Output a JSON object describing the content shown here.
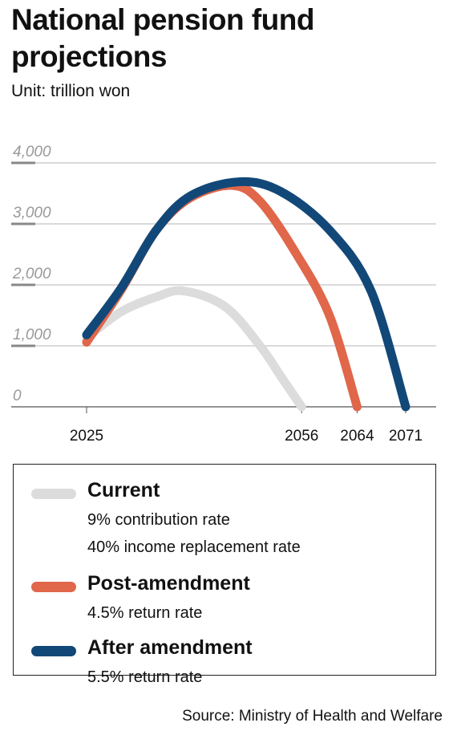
{
  "title": "National pension fund projections",
  "unit": "Unit: trillion won",
  "source": "Source: Ministry of Health and Welfare",
  "legend": [
    {
      "name": "Current",
      "color": "#dcdcdc",
      "lines": [
        "9% contribution rate",
        "40% income replacement rate"
      ]
    },
    {
      "name": "Post-amendment",
      "color": "#e0674a",
      "lines": [
        "4.5% return rate"
      ]
    },
    {
      "name": "After amendment",
      "color": "#124878",
      "lines": [
        "5.5% return rate"
      ]
    }
  ],
  "chart_data": {
    "type": "line",
    "title": "National pension fund projections",
    "ylabel": "Unit: trillion won",
    "ylim": [
      0,
      4000
    ],
    "yticks": [
      "0",
      "1,000",
      "2,000",
      "3,000",
      "4,000"
    ],
    "xticks": [
      "2025",
      "2056",
      "2064",
      "2071"
    ],
    "grid": true,
    "series": [
      {
        "name": "Current",
        "color": "#dcdcdc",
        "x": [
          2025,
          2030,
          2035,
          2039,
          2045,
          2050,
          2053,
          2056
        ],
        "y": [
          1130,
          1560,
          1800,
          1900,
          1640,
          1000,
          500,
          0
        ]
      },
      {
        "name": "Post-amendment",
        "color": "#e0674a",
        "x": [
          2025,
          2030,
          2035,
          2040,
          2046,
          2050,
          2055,
          2060,
          2064
        ],
        "y": [
          1060,
          1920,
          2890,
          3430,
          3630,
          3370,
          2550,
          1500,
          0
        ]
      },
      {
        "name": "After amendment",
        "color": "#124878",
        "x": [
          2025,
          2030,
          2035,
          2040,
          2047,
          2053,
          2060,
          2066,
          2071
        ],
        "y": [
          1180,
          1950,
          2890,
          3460,
          3690,
          3530,
          2900,
          1900,
          0
        ]
      }
    ]
  }
}
